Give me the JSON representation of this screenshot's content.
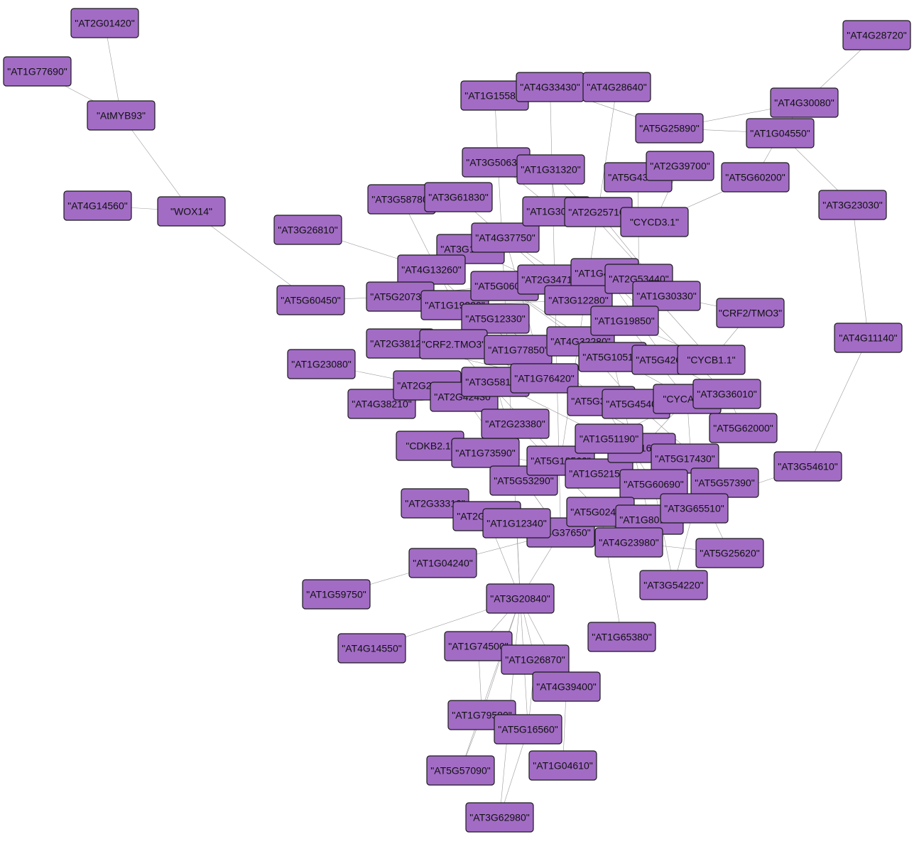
{
  "diagram": {
    "node_fill": "#a26cc5",
    "edge_color": "#9a9a9a",
    "nodes": [
      {
        "id": "n1",
        "label": "\"AT2G01420\""
      },
      {
        "id": "n2",
        "label": "\"AT1G77690\""
      },
      {
        "id": "n3",
        "label": "\"AtMYB93\""
      },
      {
        "id": "n4",
        "label": "\"AT4G14560\""
      },
      {
        "id": "n5",
        "label": "\"WOX14\""
      },
      {
        "id": "n6",
        "label": "\"AT3G26810\""
      },
      {
        "id": "n7",
        "label": "\"AT5G60450\""
      },
      {
        "id": "n8",
        "label": "\"AT1G23080\""
      },
      {
        "id": "n9",
        "label": "\"AT4G38210\""
      },
      {
        "id": "n10",
        "label": "\"AT1G59750\""
      },
      {
        "id": "n11",
        "label": "\"AT4G14550\""
      },
      {
        "id": "n12",
        "label": "\"AT1G04240\""
      },
      {
        "id": "n13",
        "label": "\"AT2G33310\""
      },
      {
        "id": "n14",
        "label": "\"CDKB2.1\""
      },
      {
        "id": "n15",
        "label": "\"AT1G15580\""
      },
      {
        "id": "n16",
        "label": "\"AT4G33430\""
      },
      {
        "id": "n17",
        "label": "\"AT4G28640\""
      },
      {
        "id": "n18",
        "label": "\"AT3G50630\""
      },
      {
        "id": "n19",
        "label": "\"AT1G31320\""
      },
      {
        "id": "n20",
        "label": "\"AT3G58780\""
      },
      {
        "id": "n21",
        "label": "\"AT3G61830\""
      },
      {
        "id": "n22",
        "label": "\"AT3G15030\""
      },
      {
        "id": "n23",
        "label": "\"AT4G37750\""
      },
      {
        "id": "n24",
        "label": "\"AT4G13260\""
      },
      {
        "id": "n25",
        "label": "\"AT5G20730\""
      },
      {
        "id": "n26",
        "label": "\"AT1G19220\""
      },
      {
        "id": "n27",
        "label": "\"AT5G06010\""
      },
      {
        "id": "n28",
        "label": "\"AT5G12330\""
      },
      {
        "id": "n29",
        "label": "\"AT2G38120\""
      },
      {
        "id": "n30",
        "label": "\"CRF2.TMO3\""
      },
      {
        "id": "n31",
        "label": "\"AT2G25170\""
      },
      {
        "id": "n32",
        "label": "\"AT2G42430\""
      },
      {
        "id": "n33",
        "label": "\"AT3G58190\""
      },
      {
        "id": "n34",
        "label": "\"AT1G73590\""
      },
      {
        "id": "n35",
        "label": "\"AT2G23380\""
      },
      {
        "id": "n36",
        "label": "\"AT5G53290\""
      },
      {
        "id": "n37",
        "label": "\"AT2G23170\""
      },
      {
        "id": "n38",
        "label": "\"AT5G18560\""
      },
      {
        "id": "n39",
        "label": "\"AT1G52150\""
      },
      {
        "id": "n40",
        "label": "\"AT1G16060\""
      },
      {
        "id": "n41",
        "label": "\"AT4G37650\""
      },
      {
        "id": "n42",
        "label": "\"AT1G30490\""
      },
      {
        "id": "n43",
        "label": "\"AT2G25710\""
      },
      {
        "id": "n44",
        "label": "\"AT2G34710\""
      },
      {
        "id": "n45",
        "label": "\"AT1G47870\""
      },
      {
        "id": "n46",
        "label": "\"AT1G51190\""
      },
      {
        "id": "n47",
        "label": "\"AT3G12280\""
      },
      {
        "id": "n48",
        "label": "\"AT1G77850\""
      },
      {
        "id": "n49",
        "label": "\"AT1G76420\""
      },
      {
        "id": "n50",
        "label": "\"AT4G32280\""
      },
      {
        "id": "n51",
        "label": "\"AT5G43410\""
      },
      {
        "id": "n52",
        "label": "\"AT2G39700\""
      },
      {
        "id": "n53",
        "label": "\"CYCD3.1\""
      },
      {
        "id": "n54",
        "label": "\"AT2G53440\""
      },
      {
        "id": "n55",
        "label": "\"AT1G30330\""
      },
      {
        "id": "n56",
        "label": "\"AT1G19850\""
      },
      {
        "id": "n57",
        "label": "\"AT5G10510\""
      },
      {
        "id": "n58",
        "label": "\"AT5G42630\""
      },
      {
        "id": "n59",
        "label": "\"CYCB1.1\""
      },
      {
        "id": "n60",
        "label": "\"AT5G37020\""
      },
      {
        "id": "n61",
        "label": "\"AT5G45400\""
      },
      {
        "id": "n62",
        "label": "\"CYCA2.4\""
      },
      {
        "id": "n63",
        "label": "\"AT5G17430\""
      },
      {
        "id": "n64",
        "label": "\"AT5G60690\""
      },
      {
        "id": "n65",
        "label": "\"AT5G02470\""
      },
      {
        "id": "n66",
        "label": "\"AT1G80100\""
      },
      {
        "id": "n67",
        "label": "\"AT4G23980\""
      },
      {
        "id": "n68",
        "label": "\"AT5G25890\""
      },
      {
        "id": "n69",
        "label": "\"AT4G28720\""
      },
      {
        "id": "n70",
        "label": "\"AT4G30080\""
      },
      {
        "id": "n71",
        "label": "\"AT1G04550\""
      },
      {
        "id": "n72",
        "label": "\"AT5G60200\""
      },
      {
        "id": "n73",
        "label": "\"AT3G23030\""
      },
      {
        "id": "n74",
        "label": "\"CRF2/TMO3\""
      },
      {
        "id": "n75",
        "label": "\"AT4G11140\""
      },
      {
        "id": "n76",
        "label": "\"AT3G36010\""
      },
      {
        "id": "n77",
        "label": "\"AT5G62000\""
      },
      {
        "id": "n78",
        "label": "\"AT3G54610\""
      },
      {
        "id": "n79",
        "label": "\"AT5G57390\""
      },
      {
        "id": "n80",
        "label": "\"AT3G65510\""
      },
      {
        "id": "n81",
        "label": "\"AT5G25620\""
      },
      {
        "id": "n82",
        "label": "\"AT3G54220\""
      },
      {
        "id": "n83",
        "label": "\"AT3G20840\""
      },
      {
        "id": "n84",
        "label": "\"AT1G65380\""
      },
      {
        "id": "n85",
        "label": "\"AT1G74500\""
      },
      {
        "id": "n86",
        "label": "\"AT1G26870\""
      },
      {
        "id": "n87",
        "label": "\"AT4G39400\""
      },
      {
        "id": "n88",
        "label": "\"AT1G79580\""
      },
      {
        "id": "n89",
        "label": "\"AT5G16560\""
      },
      {
        "id": "n90",
        "label": "\"AT5G57090\""
      },
      {
        "id": "n91",
        "label": "\"AT1G04610\""
      },
      {
        "id": "n92",
        "label": "\"AT3G62980\""
      },
      {
        "id": "n93",
        "label": "\"AT1G12340\""
      }
    ],
    "edges": [
      [
        "n1",
        "n3"
      ],
      [
        "n2",
        "n3"
      ],
      [
        "n3",
        "n5"
      ],
      [
        "n4",
        "n5"
      ],
      [
        "n5",
        "n7"
      ],
      [
        "n7",
        "n25"
      ],
      [
        "n6",
        "n24"
      ],
      [
        "n8",
        "n31"
      ],
      [
        "n9",
        "n32"
      ],
      [
        "n10",
        "n12"
      ],
      [
        "n11",
        "n83"
      ],
      [
        "n12",
        "n41"
      ],
      [
        "n13",
        "n37"
      ],
      [
        "n14",
        "n34"
      ],
      [
        "n15",
        "n83"
      ],
      [
        "n16",
        "n41"
      ],
      [
        "n17",
        "n38"
      ],
      [
        "n18",
        "n42"
      ],
      [
        "n19",
        "n42"
      ],
      [
        "n20",
        "n26"
      ],
      [
        "n21",
        "n44"
      ],
      [
        "n22",
        "n47"
      ],
      [
        "n23",
        "n56"
      ],
      [
        "n24",
        "n48"
      ],
      [
        "n25",
        "n44"
      ],
      [
        "n26",
        "n47"
      ],
      [
        "n27",
        "n57"
      ],
      [
        "n28",
        "n60"
      ],
      [
        "n29",
        "n49"
      ],
      [
        "n30",
        "n38"
      ],
      [
        "n31",
        "n35"
      ],
      [
        "n32",
        "n41"
      ],
      [
        "n33",
        "n46"
      ],
      [
        "n34",
        "n39"
      ],
      [
        "n35",
        "n65"
      ],
      [
        "n36",
        "n41"
      ],
      [
        "n37",
        "n83"
      ],
      [
        "n38",
        "n63"
      ],
      [
        "n39",
        "n64"
      ],
      [
        "n40",
        "n62"
      ],
      [
        "n41",
        "n83"
      ],
      [
        "n42",
        "n53"
      ],
      [
        "n43",
        "n55"
      ],
      [
        "n44",
        "n56"
      ],
      [
        "n45",
        "n58"
      ],
      [
        "n46",
        "n62"
      ],
      [
        "n47",
        "n59"
      ],
      [
        "n48",
        "n60"
      ],
      [
        "n49",
        "n63"
      ],
      [
        "n50",
        "n61"
      ],
      [
        "n51",
        "n54"
      ],
      [
        "n52",
        "n53"
      ],
      [
        "n53",
        "n72"
      ],
      [
        "n54",
        "n59"
      ],
      [
        "n55",
        "n74"
      ],
      [
        "n56",
        "n62"
      ],
      [
        "n57",
        "n77"
      ],
      [
        "n58",
        "n76"
      ],
      [
        "n60",
        "n64"
      ],
      [
        "n61",
        "n79"
      ],
      [
        "n62",
        "n80"
      ],
      [
        "n63",
        "n81"
      ],
      [
        "n64",
        "n82"
      ],
      [
        "n65",
        "n67"
      ],
      [
        "n66",
        "n78"
      ],
      [
        "n67",
        "n81"
      ],
      [
        "n68",
        "n70"
      ],
      [
        "n68",
        "n71"
      ],
      [
        "n68",
        "n16"
      ],
      [
        "n69",
        "n70"
      ],
      [
        "n70",
        "n71"
      ],
      [
        "n71",
        "n73"
      ],
      [
        "n72",
        "n71"
      ],
      [
        "n73",
        "n75"
      ],
      [
        "n75",
        "n78"
      ],
      [
        "n74",
        "n59"
      ],
      [
        "n76",
        "n77"
      ],
      [
        "n80",
        "n82"
      ],
      [
        "n83",
        "n85"
      ],
      [
        "n83",
        "n86"
      ],
      [
        "n83",
        "n87"
      ],
      [
        "n83",
        "n89"
      ],
      [
        "n83",
        "n88"
      ],
      [
        "n83",
        "n92"
      ],
      [
        "n83",
        "n90"
      ],
      [
        "n85",
        "n88"
      ],
      [
        "n86",
        "n89"
      ],
      [
        "n87",
        "n91"
      ],
      [
        "n88",
        "n90"
      ],
      [
        "n89",
        "n92"
      ],
      [
        "n84",
        "n65"
      ],
      [
        "n93",
        "n83"
      ],
      [
        "n19",
        "n55"
      ],
      [
        "n23",
        "n49"
      ],
      [
        "n27",
        "n50"
      ],
      [
        "n33",
        "n36"
      ],
      [
        "n57",
        "n66"
      ],
      [
        "n45",
        "n76"
      ],
      [
        "n30",
        "n60"
      ]
    ]
  }
}
